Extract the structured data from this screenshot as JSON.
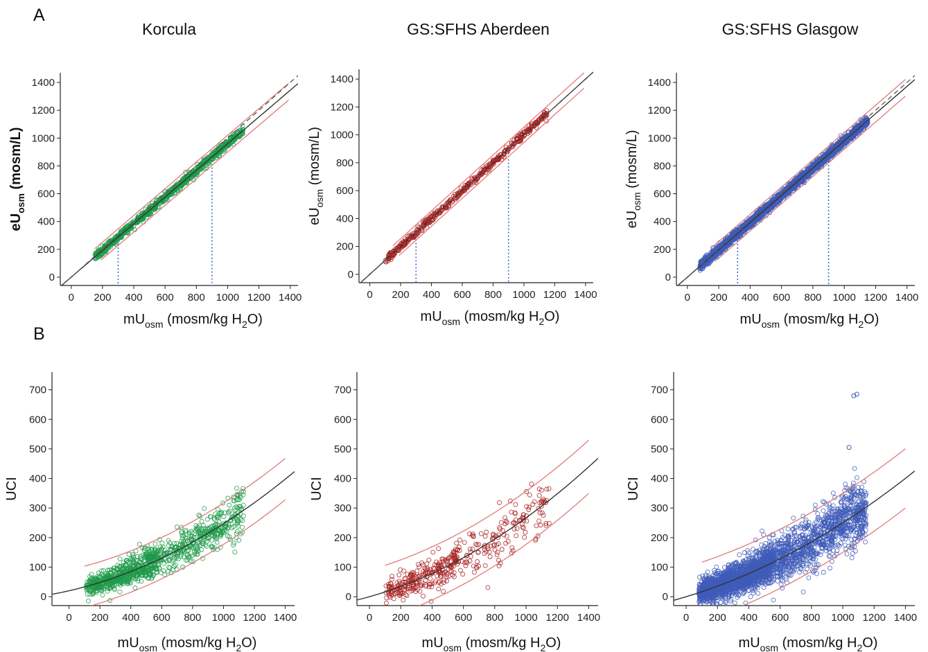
{
  "panel_labels": [
    "A",
    "B"
  ],
  "columns": [
    {
      "title": "Korcula",
      "color": "#1f9a4a"
    },
    {
      "title": "GS:SFHS Aberdeen",
      "color": "#a82020"
    },
    {
      "title": "GS:SFHS Glasgow",
      "color": "#3f5cb8"
    }
  ],
  "colors": {
    "prediction_band": "#e07a7a",
    "fit_line": "#333333",
    "identity_line": "#555555",
    "cutoff_line": "#3a6ad8"
  },
  "chart_data": [
    {
      "type": "scatter",
      "panel": "A",
      "column": "Korcula",
      "xlabel": {
        "main": "mU",
        "sub": "osm",
        "rest": " (mosm/kg H",
        "sub2": "2",
        "end": "O)"
      },
      "ylabel": {
        "main": "eU",
        "sub": "osm",
        "rest": " (mosm/L)",
        "bold": true
      },
      "xticks": [
        0,
        200,
        400,
        600,
        800,
        1000,
        1200,
        1400
      ],
      "yticks": [
        0,
        200,
        400,
        600,
        800,
        1000,
        1200,
        1400
      ],
      "xlim": [
        -70,
        1450
      ],
      "ylim": [
        -60,
        1470
      ],
      "x_range": [
        150,
        1100
      ],
      "fit": {
        "intercept": 0,
        "slope": 0.96,
        "quad": 0
      },
      "band": 60,
      "identity": true,
      "cutoffs": [
        300,
        900
      ],
      "n_points": 900,
      "spread": 25
    },
    {
      "type": "scatter",
      "panel": "A",
      "column": "GS:SFHS Aberdeen",
      "xlabel": {
        "main": "mU",
        "sub": "osm",
        "rest": " (mosm/kg H",
        "sub2": "2",
        "end": "O)"
      },
      "ylabel": {
        "main": "eU",
        "sub": "osm",
        "rest": " (mosm/L)",
        "bold": false
      },
      "xticks": [
        0,
        200,
        400,
        600,
        800,
        1000,
        1200,
        1400
      ],
      "yticks": [
        0,
        200,
        400,
        600,
        800,
        1000,
        1200,
        1400
      ],
      "xlim": [
        -70,
        1450
      ],
      "ylim": [
        -60,
        1470
      ],
      "x_range": [
        100,
        1150
      ],
      "fit": {
        "intercept": 0,
        "slope": 1.0,
        "quad": 0
      },
      "band": 55,
      "identity": true,
      "cutoffs": [
        300,
        900
      ],
      "n_points": 450,
      "spread": 22
    },
    {
      "type": "scatter",
      "panel": "A",
      "column": "GS:SFHS Glasgow",
      "xlabel": {
        "main": "mU",
        "sub": "osm",
        "rest": " (mosm/kg H",
        "sub2": "2",
        "end": "O)"
      },
      "ylabel": {
        "main": "eU",
        "sub": "osm",
        "rest": " (mosm/L)",
        "bold": false
      },
      "xticks": [
        0,
        200,
        400,
        600,
        800,
        1000,
        1200,
        1400
      ],
      "yticks": [
        0,
        200,
        400,
        600,
        800,
        1000,
        1200,
        1400
      ],
      "xlim": [
        -70,
        1450
      ],
      "ylim": [
        -60,
        1470
      ],
      "x_range": [
        80,
        1150
      ],
      "fit": {
        "intercept": 0,
        "slope": 0.98,
        "quad": 0
      },
      "band": 60,
      "identity": true,
      "cutoffs": [
        320,
        900
      ],
      "n_points": 2600,
      "spread": 26
    },
    {
      "type": "scatter",
      "panel": "B",
      "column": "Korcula",
      "xlabel": {
        "main": "mU",
        "sub": "osm",
        "rest": "  (mosm/kg H",
        "sub2": "2",
        "end": "O)"
      },
      "ylabel": {
        "main": "UCI",
        "sub": "",
        "rest": "",
        "bold": false
      },
      "xticks": [
        0,
        200,
        400,
        600,
        800,
        1000,
        1200,
        1400
      ],
      "yticks": [
        0,
        100,
        200,
        300,
        400,
        500,
        600,
        700
      ],
      "xlim": [
        -110,
        1460
      ],
      "ylim": [
        -30,
        760
      ],
      "x_range": [
        110,
        1130
      ],
      "fit": {
        "intercept": 20,
        "slope": 0.12,
        "quad": 0.000107
      },
      "band": 70,
      "identity": false,
      "cutoffs": [],
      "n_points": 1000,
      "spread": 40
    },
    {
      "type": "scatter",
      "panel": "B",
      "column": "GS:SFHS Aberdeen",
      "xlabel": {
        "main": "mU",
        "sub": "osm",
        "rest": "  (mosm/kg H",
        "sub2": "2",
        "end": "O)"
      },
      "ylabel": {
        "main": "UCI",
        "sub": "",
        "rest": "",
        "bold": false
      },
      "xticks": [
        0,
        200,
        400,
        600,
        800,
        1000,
        1200,
        1400
      ],
      "yticks": [
        0,
        100,
        200,
        300,
        400,
        500,
        600,
        700
      ],
      "xlim": [
        -80,
        1460
      ],
      "ylim": [
        -30,
        760
      ],
      "x_range": [
        100,
        1150
      ],
      "fit": {
        "intercept": 0,
        "slope": 0.15,
        "quad": 0.000117
      },
      "band": 90,
      "identity": false,
      "cutoffs": [],
      "n_points": 400,
      "spread": 50
    },
    {
      "type": "scatter",
      "panel": "B",
      "column": "GS:SFHS Glasgow",
      "xlabel": {
        "main": "mU",
        "sub": "osm",
        "rest": "  (mosm/kg H",
        "sub2": "2",
        "end": "O)"
      },
      "ylabel": {
        "main": "UCI",
        "sub": "",
        "rest": "",
        "bold": false
      },
      "xticks": [
        0,
        200,
        400,
        600,
        800,
        1000,
        1200,
        1400
      ],
      "yticks": [
        0,
        100,
        200,
        300,
        400,
        500,
        600,
        700
      ],
      "xlim": [
        -80,
        1460
      ],
      "ylim": [
        -30,
        760
      ],
      "x_range": [
        80,
        1150
      ],
      "fit": {
        "intercept": 0,
        "slope": 0.16,
        "quad": 9e-05
      },
      "band": 100,
      "identity": false,
      "cutoffs": [],
      "n_points": 2600,
      "spread": 52,
      "outliers": [
        {
          "x": 1070,
          "y": 680
        },
        {
          "x": 1090,
          "y": 685
        },
        {
          "x": 1040,
          "y": 505
        }
      ]
    }
  ]
}
